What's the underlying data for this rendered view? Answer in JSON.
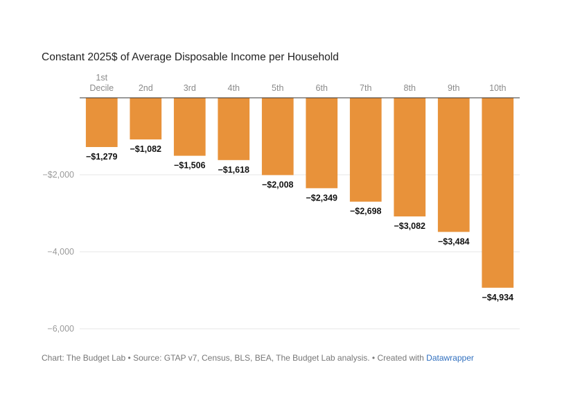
{
  "chart_data": {
    "type": "bar",
    "title": "Constant 2025$ of Average Disposable Income per Household",
    "categories": [
      [
        "1st",
        "Decile"
      ],
      [
        "2nd"
      ],
      [
        "3rd"
      ],
      [
        "4th"
      ],
      [
        "5th"
      ],
      [
        "6th"
      ],
      [
        "7th"
      ],
      [
        "8th"
      ],
      [
        "9th"
      ],
      [
        "10th"
      ]
    ],
    "values": [
      -1279,
      -1082,
      -1506,
      -1618,
      -2008,
      -2349,
      -2698,
      -3082,
      -3484,
      -4934
    ],
    "value_labels": [
      "−$1,279",
      "−$1,082",
      "−$1,506",
      "−$1,618",
      "−$2,008",
      "−$2,349",
      "−$2,698",
      "−$3,082",
      "−$3,484",
      "−$4,934"
    ],
    "yticks": [
      -2000,
      -4000,
      -6000
    ],
    "ytick_labels": [
      "−$2,000",
      "−4,000",
      "−6,000"
    ],
    "ylim": [
      -6000,
      0
    ],
    "bar_color": "#e8923a",
    "grid": true,
    "category_axis_position": "top"
  },
  "footer": {
    "text": "Chart: The Budget Lab • Source: GTAP v7, Census, BLS, BEA, The Budget Lab analysis. • Created with ",
    "link": "Datawrapper"
  }
}
